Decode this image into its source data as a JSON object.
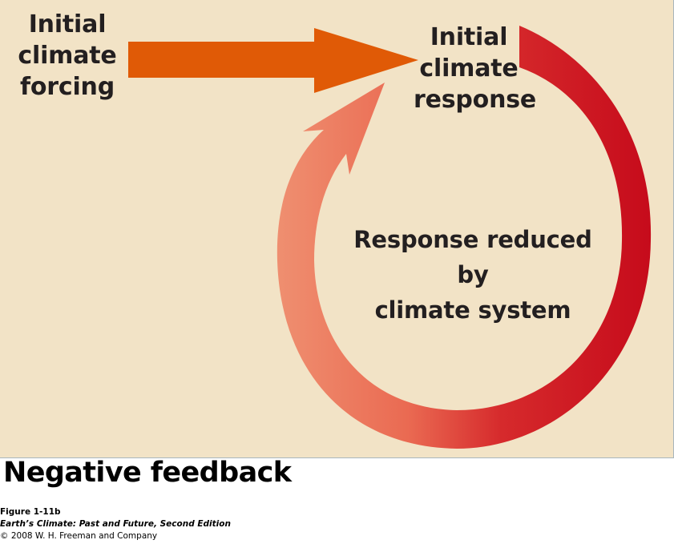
{
  "diagram": {
    "forcing_label": [
      "Initial",
      "climate",
      "forcing"
    ],
    "response_label": [
      "Initial",
      "climate",
      "response"
    ],
    "reduced_label": [
      "Response reduced",
      "by",
      "climate system"
    ],
    "colors": {
      "background": "#f2e3c6",
      "forcing_arrow": "#e05a06",
      "loop_start": "#c60b1b",
      "loop_end": "#ef8f70"
    }
  },
  "title": "Negative feedback",
  "caption": {
    "figure": "Figure 1-11b",
    "book": "Earth’s Climate: Past and Future, Second Edition",
    "copyright": "© 2008 W. H. Freeman and Company"
  }
}
